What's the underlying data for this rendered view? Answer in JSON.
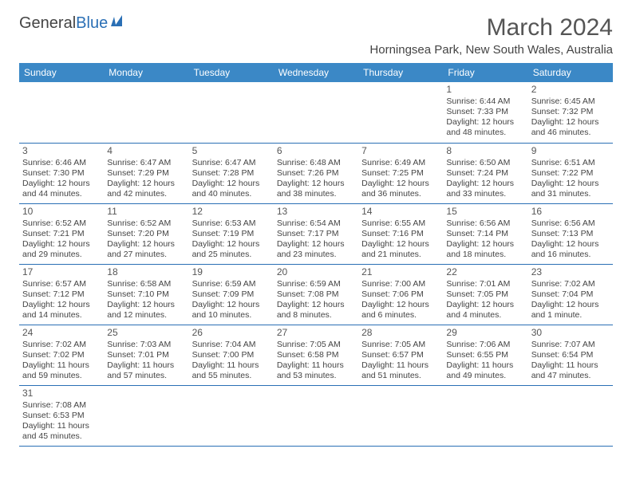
{
  "brand": {
    "part1": "General",
    "part2": "Blue"
  },
  "title": "March 2024",
  "location": "Horningsea Park, New South Wales, Australia",
  "calendar": {
    "header_bg": "#3b88c6",
    "header_text_color": "#ffffff",
    "border_color": "#2a6fb5",
    "background_color": "#ffffff",
    "title_fontsize": 30,
    "location_fontsize": 15,
    "header_fontsize": 12,
    "cell_fontsize": 10.5,
    "columns": [
      "Sunday",
      "Monday",
      "Tuesday",
      "Wednesday",
      "Thursday",
      "Friday",
      "Saturday"
    ],
    "weeks": [
      [
        null,
        null,
        null,
        null,
        null,
        {
          "d": "1",
          "sunrise": "Sunrise: 6:44 AM",
          "sunset": "Sunset: 7:33 PM",
          "day1": "Daylight: 12 hours",
          "day2": "and 48 minutes."
        },
        {
          "d": "2",
          "sunrise": "Sunrise: 6:45 AM",
          "sunset": "Sunset: 7:32 PM",
          "day1": "Daylight: 12 hours",
          "day2": "and 46 minutes."
        }
      ],
      [
        {
          "d": "3",
          "sunrise": "Sunrise: 6:46 AM",
          "sunset": "Sunset: 7:30 PM",
          "day1": "Daylight: 12 hours",
          "day2": "and 44 minutes."
        },
        {
          "d": "4",
          "sunrise": "Sunrise: 6:47 AM",
          "sunset": "Sunset: 7:29 PM",
          "day1": "Daylight: 12 hours",
          "day2": "and 42 minutes."
        },
        {
          "d": "5",
          "sunrise": "Sunrise: 6:47 AM",
          "sunset": "Sunset: 7:28 PM",
          "day1": "Daylight: 12 hours",
          "day2": "and 40 minutes."
        },
        {
          "d": "6",
          "sunrise": "Sunrise: 6:48 AM",
          "sunset": "Sunset: 7:26 PM",
          "day1": "Daylight: 12 hours",
          "day2": "and 38 minutes."
        },
        {
          "d": "7",
          "sunrise": "Sunrise: 6:49 AM",
          "sunset": "Sunset: 7:25 PM",
          "day1": "Daylight: 12 hours",
          "day2": "and 36 minutes."
        },
        {
          "d": "8",
          "sunrise": "Sunrise: 6:50 AM",
          "sunset": "Sunset: 7:24 PM",
          "day1": "Daylight: 12 hours",
          "day2": "and 33 minutes."
        },
        {
          "d": "9",
          "sunrise": "Sunrise: 6:51 AM",
          "sunset": "Sunset: 7:22 PM",
          "day1": "Daylight: 12 hours",
          "day2": "and 31 minutes."
        }
      ],
      [
        {
          "d": "10",
          "sunrise": "Sunrise: 6:52 AM",
          "sunset": "Sunset: 7:21 PM",
          "day1": "Daylight: 12 hours",
          "day2": "and 29 minutes."
        },
        {
          "d": "11",
          "sunrise": "Sunrise: 6:52 AM",
          "sunset": "Sunset: 7:20 PM",
          "day1": "Daylight: 12 hours",
          "day2": "and 27 minutes."
        },
        {
          "d": "12",
          "sunrise": "Sunrise: 6:53 AM",
          "sunset": "Sunset: 7:19 PM",
          "day1": "Daylight: 12 hours",
          "day2": "and 25 minutes."
        },
        {
          "d": "13",
          "sunrise": "Sunrise: 6:54 AM",
          "sunset": "Sunset: 7:17 PM",
          "day1": "Daylight: 12 hours",
          "day2": "and 23 minutes."
        },
        {
          "d": "14",
          "sunrise": "Sunrise: 6:55 AM",
          "sunset": "Sunset: 7:16 PM",
          "day1": "Daylight: 12 hours",
          "day2": "and 21 minutes."
        },
        {
          "d": "15",
          "sunrise": "Sunrise: 6:56 AM",
          "sunset": "Sunset: 7:14 PM",
          "day1": "Daylight: 12 hours",
          "day2": "and 18 minutes."
        },
        {
          "d": "16",
          "sunrise": "Sunrise: 6:56 AM",
          "sunset": "Sunset: 7:13 PM",
          "day1": "Daylight: 12 hours",
          "day2": "and 16 minutes."
        }
      ],
      [
        {
          "d": "17",
          "sunrise": "Sunrise: 6:57 AM",
          "sunset": "Sunset: 7:12 PM",
          "day1": "Daylight: 12 hours",
          "day2": "and 14 minutes."
        },
        {
          "d": "18",
          "sunrise": "Sunrise: 6:58 AM",
          "sunset": "Sunset: 7:10 PM",
          "day1": "Daylight: 12 hours",
          "day2": "and 12 minutes."
        },
        {
          "d": "19",
          "sunrise": "Sunrise: 6:59 AM",
          "sunset": "Sunset: 7:09 PM",
          "day1": "Daylight: 12 hours",
          "day2": "and 10 minutes."
        },
        {
          "d": "20",
          "sunrise": "Sunrise: 6:59 AM",
          "sunset": "Sunset: 7:08 PM",
          "day1": "Daylight: 12 hours",
          "day2": "and 8 minutes."
        },
        {
          "d": "21",
          "sunrise": "Sunrise: 7:00 AM",
          "sunset": "Sunset: 7:06 PM",
          "day1": "Daylight: 12 hours",
          "day2": "and 6 minutes."
        },
        {
          "d": "22",
          "sunrise": "Sunrise: 7:01 AM",
          "sunset": "Sunset: 7:05 PM",
          "day1": "Daylight: 12 hours",
          "day2": "and 4 minutes."
        },
        {
          "d": "23",
          "sunrise": "Sunrise: 7:02 AM",
          "sunset": "Sunset: 7:04 PM",
          "day1": "Daylight: 12 hours",
          "day2": "and 1 minute."
        }
      ],
      [
        {
          "d": "24",
          "sunrise": "Sunrise: 7:02 AM",
          "sunset": "Sunset: 7:02 PM",
          "day1": "Daylight: 11 hours",
          "day2": "and 59 minutes."
        },
        {
          "d": "25",
          "sunrise": "Sunrise: 7:03 AM",
          "sunset": "Sunset: 7:01 PM",
          "day1": "Daylight: 11 hours",
          "day2": "and 57 minutes."
        },
        {
          "d": "26",
          "sunrise": "Sunrise: 7:04 AM",
          "sunset": "Sunset: 7:00 PM",
          "day1": "Daylight: 11 hours",
          "day2": "and 55 minutes."
        },
        {
          "d": "27",
          "sunrise": "Sunrise: 7:05 AM",
          "sunset": "Sunset: 6:58 PM",
          "day1": "Daylight: 11 hours",
          "day2": "and 53 minutes."
        },
        {
          "d": "28",
          "sunrise": "Sunrise: 7:05 AM",
          "sunset": "Sunset: 6:57 PM",
          "day1": "Daylight: 11 hours",
          "day2": "and 51 minutes."
        },
        {
          "d": "29",
          "sunrise": "Sunrise: 7:06 AM",
          "sunset": "Sunset: 6:55 PM",
          "day1": "Daylight: 11 hours",
          "day2": "and 49 minutes."
        },
        {
          "d": "30",
          "sunrise": "Sunrise: 7:07 AM",
          "sunset": "Sunset: 6:54 PM",
          "day1": "Daylight: 11 hours",
          "day2": "and 47 minutes."
        }
      ],
      [
        {
          "d": "31",
          "sunrise": "Sunrise: 7:08 AM",
          "sunset": "Sunset: 6:53 PM",
          "day1": "Daylight: 11 hours",
          "day2": "and 45 minutes."
        },
        null,
        null,
        null,
        null,
        null,
        null
      ]
    ]
  }
}
